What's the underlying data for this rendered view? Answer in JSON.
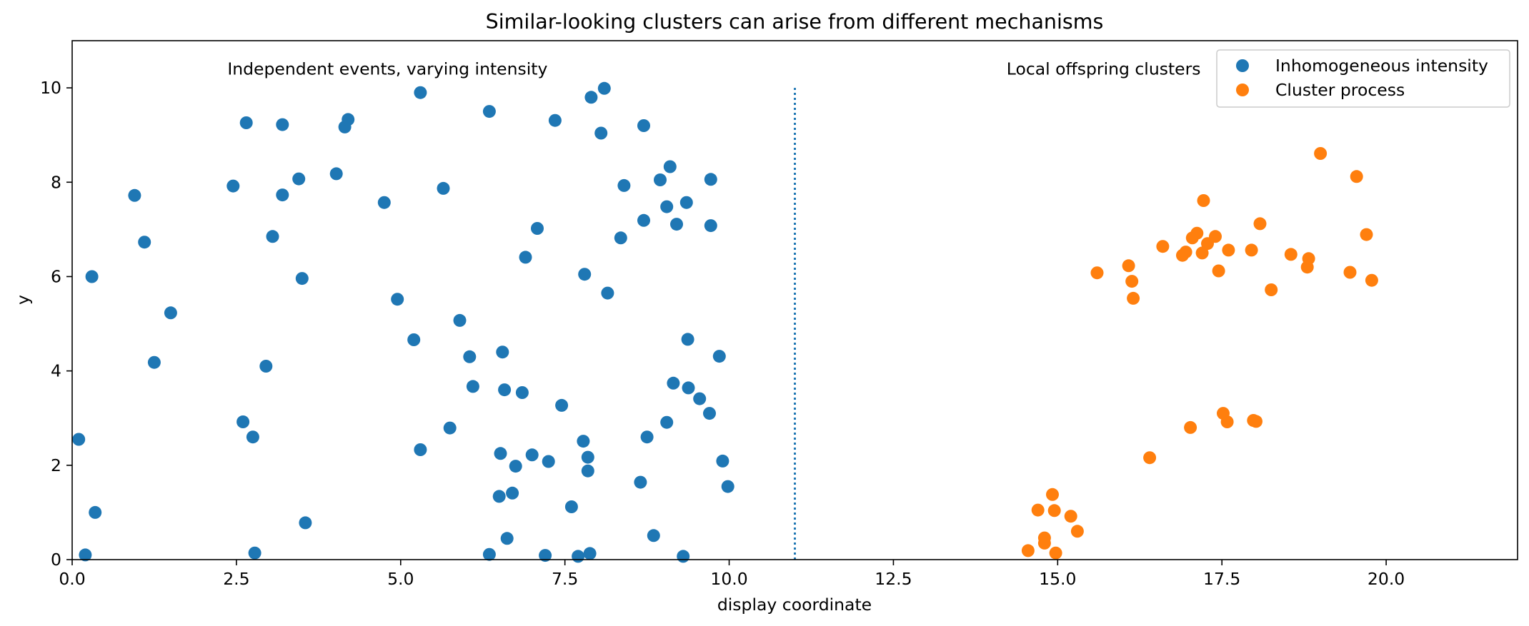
{
  "chart_data": {
    "type": "scatter",
    "title": "Similar-looking clusters can arise from different mechanisms",
    "xlabel": "display coordinate",
    "ylabel": "y",
    "xlim": [
      0,
      22
    ],
    "ylim": [
      0,
      11
    ],
    "x_ticks": [
      0.0,
      2.5,
      5.0,
      7.5,
      10.0,
      12.5,
      15.0,
      17.5,
      20.0
    ],
    "x_tick_labels": [
      "0.0",
      "2.5",
      "5.0",
      "7.5",
      "10.0",
      "12.5",
      "15.0",
      "17.5",
      "20.0"
    ],
    "y_ticks": [
      0,
      2,
      4,
      6,
      8,
      10
    ],
    "y_tick_labels": [
      "0",
      "2",
      "4",
      "6",
      "8",
      "10"
    ],
    "grid": false,
    "legend_position": "top-right",
    "vline": {
      "x": 11.0,
      "y_range": [
        0,
        10
      ],
      "style": "dotted",
      "color": "#1f77b4"
    },
    "annotations": [
      {
        "text": "Independent events, varying intensity",
        "x": 4.8,
        "y": 10.4
      },
      {
        "text": "Local offspring clusters",
        "x": 15.7,
        "y": 10.4
      }
    ],
    "series": [
      {
        "name": "Inhomogeneous intensity",
        "color": "#1f77b4",
        "points": [
          [
            0.1,
            2.55
          ],
          [
            0.2,
            0.1
          ],
          [
            0.3,
            6.0
          ],
          [
            0.35,
            1.0
          ],
          [
            0.95,
            7.72
          ],
          [
            1.1,
            6.73
          ],
          [
            1.25,
            4.18
          ],
          [
            1.5,
            5.23
          ],
          [
            2.45,
            7.92
          ],
          [
            2.6,
            2.92
          ],
          [
            2.65,
            9.26
          ],
          [
            2.75,
            2.6
          ],
          [
            2.78,
            0.14
          ],
          [
            2.95,
            4.1
          ],
          [
            3.05,
            6.85
          ],
          [
            3.2,
            7.73
          ],
          [
            3.2,
            9.22
          ],
          [
            3.45,
            8.07
          ],
          [
            3.5,
            5.96
          ],
          [
            3.55,
            0.78
          ],
          [
            4.02,
            8.18
          ],
          [
            4.15,
            9.17
          ],
          [
            4.2,
            9.33
          ],
          [
            4.75,
            7.57
          ],
          [
            4.95,
            5.52
          ],
          [
            5.2,
            4.66
          ],
          [
            5.3,
            2.33
          ],
          [
            5.3,
            9.9
          ],
          [
            5.65,
            7.87
          ],
          [
            5.75,
            2.79
          ],
          [
            5.9,
            5.07
          ],
          [
            6.05,
            4.3
          ],
          [
            6.1,
            3.67
          ],
          [
            6.35,
            9.5
          ],
          [
            6.35,
            0.11
          ],
          [
            6.5,
            1.34
          ],
          [
            6.52,
            2.25
          ],
          [
            6.55,
            4.4
          ],
          [
            6.58,
            3.6
          ],
          [
            6.62,
            0.45
          ],
          [
            6.7,
            1.41
          ],
          [
            6.75,
            1.98
          ],
          [
            6.85,
            3.54
          ],
          [
            6.9,
            6.41
          ],
          [
            7.0,
            2.22
          ],
          [
            7.08,
            7.02
          ],
          [
            7.2,
            0.09
          ],
          [
            7.25,
            2.08
          ],
          [
            7.35,
            9.31
          ],
          [
            7.45,
            3.27
          ],
          [
            7.6,
            1.12
          ],
          [
            7.7,
            0.07
          ],
          [
            7.78,
            2.51
          ],
          [
            7.8,
            6.05
          ],
          [
            7.85,
            2.17
          ],
          [
            7.85,
            1.88
          ],
          [
            7.88,
            0.13
          ],
          [
            7.9,
            9.8
          ],
          [
            8.05,
            9.04
          ],
          [
            8.1,
            9.99
          ],
          [
            8.15,
            5.65
          ],
          [
            8.35,
            6.82
          ],
          [
            8.4,
            7.93
          ],
          [
            8.65,
            1.64
          ],
          [
            8.7,
            7.19
          ],
          [
            8.7,
            9.2
          ],
          [
            8.75,
            2.6
          ],
          [
            8.85,
            0.51
          ],
          [
            8.95,
            8.05
          ],
          [
            9.05,
            7.48
          ],
          [
            9.05,
            2.91
          ],
          [
            9.1,
            8.33
          ],
          [
            9.15,
            3.74
          ],
          [
            9.2,
            7.11
          ],
          [
            9.3,
            0.07
          ],
          [
            9.35,
            7.57
          ],
          [
            9.37,
            4.67
          ],
          [
            9.38,
            3.64
          ],
          [
            9.55,
            3.41
          ],
          [
            9.7,
            3.1
          ],
          [
            9.72,
            8.06
          ],
          [
            9.72,
            7.08
          ],
          [
            9.85,
            4.31
          ],
          [
            9.9,
            2.09
          ],
          [
            9.98,
            1.55
          ]
        ]
      },
      {
        "name": "Cluster process",
        "color": "#ff7f0e",
        "points": [
          [
            14.55,
            0.19
          ],
          [
            14.7,
            1.05
          ],
          [
            14.8,
            0.46
          ],
          [
            14.8,
            0.35
          ],
          [
            14.92,
            1.38
          ],
          [
            14.95,
            1.04
          ],
          [
            14.97,
            0.14
          ],
          [
            15.2,
            0.92
          ],
          [
            15.3,
            0.6
          ],
          [
            15.6,
            6.08
          ],
          [
            16.08,
            6.23
          ],
          [
            16.13,
            5.9
          ],
          [
            16.15,
            5.54
          ],
          [
            16.4,
            2.16
          ],
          [
            16.6,
            6.64
          ],
          [
            16.9,
            6.45
          ],
          [
            16.95,
            6.52
          ],
          [
            17.02,
            2.8
          ],
          [
            17.05,
            6.82
          ],
          [
            17.12,
            6.92
          ],
          [
            17.2,
            6.5
          ],
          [
            17.22,
            7.61
          ],
          [
            17.28,
            6.7
          ],
          [
            17.4,
            6.85
          ],
          [
            17.45,
            6.12
          ],
          [
            17.52,
            3.1
          ],
          [
            17.58,
            2.92
          ],
          [
            17.6,
            6.56
          ],
          [
            17.95,
            6.56
          ],
          [
            17.98,
            2.95
          ],
          [
            18.02,
            2.93
          ],
          [
            18.08,
            7.12
          ],
          [
            18.25,
            5.72
          ],
          [
            18.55,
            6.47
          ],
          [
            18.8,
            6.2
          ],
          [
            18.82,
            6.38
          ],
          [
            19.0,
            8.61
          ],
          [
            19.45,
            6.09
          ],
          [
            19.55,
            8.12
          ],
          [
            19.7,
            6.89
          ],
          [
            19.78,
            5.92
          ]
        ]
      }
    ]
  }
}
